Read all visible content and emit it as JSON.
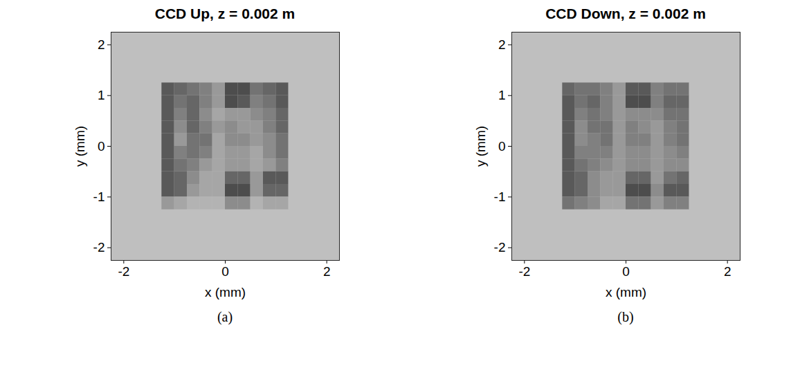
{
  "chart_data": [
    {
      "type": "heatmap",
      "title": "CCD Up, z = 0.002 m",
      "caption": "(a)",
      "x_label": "x (mm)",
      "y_label": "y (mm)",
      "xlim": [
        -2.25,
        2.25
      ],
      "ylim": [
        -2.25,
        2.25
      ],
      "xticks": [
        -2,
        0,
        2
      ],
      "yticks": [
        -2,
        -1,
        0,
        1,
        2
      ],
      "zlim": [
        0,
        1
      ],
      "x": [
        -1.375,
        -1.125,
        -0.875,
        -0.625,
        -0.375,
        -0.125,
        0.125,
        0.375,
        0.625,
        0.875,
        1.125,
        1.375
      ],
      "y": [
        1.125,
        0.875,
        0.625,
        0.375,
        0.125,
        -0.125,
        -0.375,
        -0.625,
        -0.875,
        -1.125
      ],
      "values": [
        [
          0.75,
          0.35,
          0.4,
          0.45,
          0.5,
          0.6,
          0.3,
          0.3,
          0.45,
          0.4,
          0.35,
          0.75
        ],
        [
          0.75,
          0.35,
          0.45,
          0.4,
          0.5,
          0.6,
          0.3,
          0.35,
          0.5,
          0.45,
          0.35,
          0.75
        ],
        [
          0.75,
          0.35,
          0.5,
          0.4,
          0.55,
          0.65,
          0.6,
          0.6,
          0.55,
          0.5,
          0.4,
          0.75
        ],
        [
          0.75,
          0.35,
          0.55,
          0.4,
          0.5,
          0.6,
          0.55,
          0.6,
          0.6,
          0.5,
          0.4,
          0.75
        ],
        [
          0.75,
          0.35,
          0.6,
          0.45,
          0.45,
          0.65,
          0.55,
          0.55,
          0.6,
          0.55,
          0.45,
          0.75
        ],
        [
          0.75,
          0.35,
          0.5,
          0.45,
          0.5,
          0.65,
          0.6,
          0.6,
          0.65,
          0.55,
          0.45,
          0.75
        ],
        [
          0.75,
          0.35,
          0.45,
          0.5,
          0.6,
          0.65,
          0.6,
          0.6,
          0.65,
          0.6,
          0.5,
          0.75
        ],
        [
          0.75,
          0.35,
          0.4,
          0.55,
          0.65,
          0.65,
          0.4,
          0.4,
          0.6,
          0.35,
          0.35,
          0.75
        ],
        [
          0.75,
          0.35,
          0.4,
          0.6,
          0.65,
          0.65,
          0.3,
          0.3,
          0.6,
          0.4,
          0.4,
          0.75
        ],
        [
          0.75,
          0.6,
          0.65,
          0.7,
          0.7,
          0.7,
          0.55,
          0.55,
          0.7,
          0.65,
          0.65,
          0.75
        ]
      ]
    },
    {
      "type": "heatmap",
      "title": "CCD Down, z = 0.002 m",
      "caption": "(b)",
      "x_label": "x (mm)",
      "y_label": "y (mm)",
      "xlim": [
        -2.25,
        2.25
      ],
      "ylim": [
        -2.25,
        2.25
      ],
      "xticks": [
        -2,
        0,
        2
      ],
      "yticks": [
        -2,
        -1,
        0,
        1,
        2
      ],
      "zlim": [
        0,
        1
      ],
      "x": [
        -1.375,
        -1.125,
        -0.875,
        -0.625,
        -0.375,
        -0.125,
        0.125,
        0.375,
        0.625,
        0.875,
        1.125,
        1.375
      ],
      "y": [
        1.125,
        0.875,
        0.625,
        0.375,
        0.125,
        -0.125,
        -0.375,
        -0.625,
        -0.875,
        -1.125
      ],
      "values": [
        [
          0.75,
          0.4,
          0.45,
          0.45,
          0.5,
          0.6,
          0.35,
          0.35,
          0.5,
          0.45,
          0.45,
          0.75
        ],
        [
          0.75,
          0.35,
          0.45,
          0.4,
          0.5,
          0.6,
          0.3,
          0.3,
          0.5,
          0.4,
          0.4,
          0.75
        ],
        [
          0.75,
          0.35,
          0.5,
          0.45,
          0.5,
          0.6,
          0.55,
          0.55,
          0.55,
          0.45,
          0.45,
          0.75
        ],
        [
          0.75,
          0.35,
          0.55,
          0.45,
          0.45,
          0.6,
          0.5,
          0.55,
          0.6,
          0.5,
          0.45,
          0.75
        ],
        [
          0.75,
          0.35,
          0.55,
          0.5,
          0.45,
          0.6,
          0.5,
          0.5,
          0.6,
          0.5,
          0.45,
          0.75
        ],
        [
          0.75,
          0.35,
          0.5,
          0.5,
          0.5,
          0.6,
          0.55,
          0.55,
          0.6,
          0.55,
          0.5,
          0.75
        ],
        [
          0.75,
          0.35,
          0.45,
          0.5,
          0.55,
          0.6,
          0.55,
          0.55,
          0.6,
          0.55,
          0.55,
          0.75
        ],
        [
          0.75,
          0.35,
          0.4,
          0.55,
          0.6,
          0.6,
          0.4,
          0.4,
          0.6,
          0.45,
          0.4,
          0.75
        ],
        [
          0.75,
          0.35,
          0.4,
          0.55,
          0.6,
          0.6,
          0.3,
          0.3,
          0.55,
          0.35,
          0.35,
          0.75
        ],
        [
          0.75,
          0.45,
          0.5,
          0.55,
          0.65,
          0.65,
          0.45,
          0.45,
          0.6,
          0.5,
          0.5,
          0.75
        ]
      ]
    }
  ]
}
